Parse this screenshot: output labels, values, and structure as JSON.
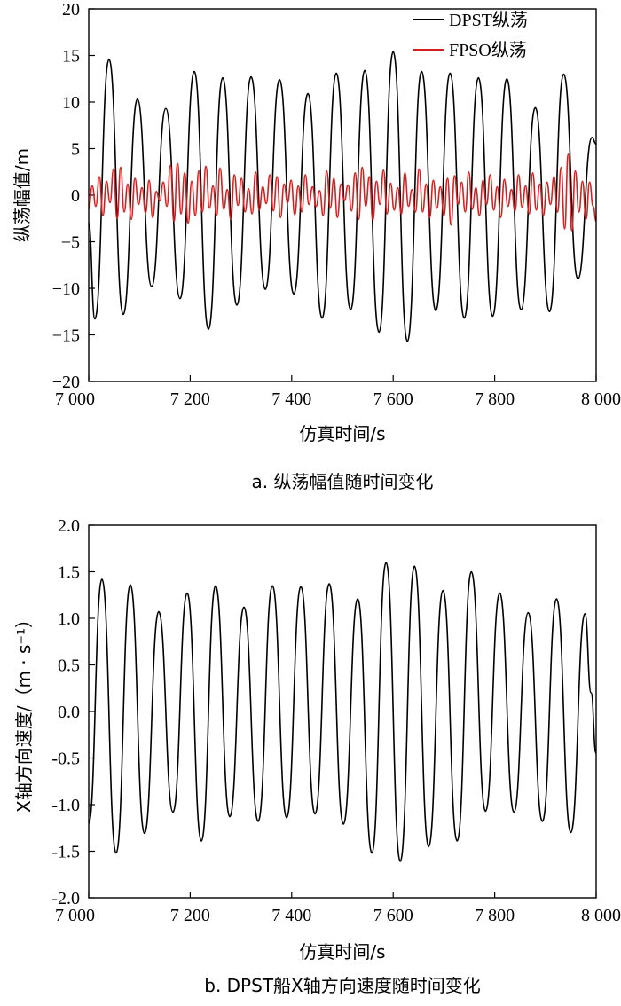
{
  "chart_data": [
    {
      "type": "line",
      "caption": "a. 纵荡幅值随时间变化",
      "xlabel": "仿真时间/s",
      "ylabel": "纵荡幅值/m",
      "xlim": [
        7000,
        8000
      ],
      "ylim": [
        -20,
        20
      ],
      "xticks": [
        7000,
        7200,
        7400,
        7600,
        7800,
        8000
      ],
      "xtick_labels": [
        "7 000",
        "7 200",
        "7 400",
        "7 600",
        "7 800",
        "8 000"
      ],
      "yticks": [
        -20,
        -15,
        -10,
        -5,
        0,
        5,
        10,
        15,
        20
      ],
      "ytick_labels": [
        "−20",
        "−15",
        "−10",
        "−5",
        "0",
        "5",
        "10",
        "15",
        "20"
      ],
      "legend_position": "top-right",
      "series": [
        {
          "name": "DPST纵荡",
          "color": "#000000",
          "x": [
            7000,
            7012,
            7040,
            7068,
            7096,
            7124,
            7152,
            7180,
            7208,
            7236,
            7264,
            7292,
            7320,
            7348,
            7376,
            7404,
            7432,
            7460,
            7488,
            7516,
            7544,
            7572,
            7600,
            7628,
            7656,
            7684,
            7712,
            7740,
            7768,
            7796,
            7824,
            7852,
            7880,
            7908,
            7936,
            7964,
            7992,
            8000
          ],
          "values": [
            -3,
            -13.3,
            14.6,
            -12.8,
            10.3,
            -9.8,
            9.3,
            -11.1,
            13.3,
            -14.4,
            12.6,
            -11.8,
            12.7,
            -10.1,
            12.4,
            -10.6,
            10.9,
            -13.2,
            13.1,
            -12.3,
            13.4,
            -14.7,
            15.4,
            -15.7,
            13.3,
            -12.4,
            13.1,
            -13.2,
            12.6,
            -13.0,
            12.5,
            -12.3,
            9.4,
            -12.5,
            13.0,
            -9.0,
            6.2,
            5.5
          ]
        },
        {
          "name": "FPSO纵荡",
          "color": "#d62020",
          "x": [
            7000,
            7007,
            7014,
            7021,
            7028,
            7035,
            7042,
            7049,
            7056,
            7063,
            7070,
            7077,
            7084,
            7091,
            7098,
            7105,
            7112,
            7119,
            7126,
            7133,
            7140,
            7147,
            7154,
            7161,
            7168,
            7175,
            7182,
            7189,
            7196,
            7203,
            7210,
            7217,
            7224,
            7231,
            7238,
            7245,
            7252,
            7259,
            7266,
            7273,
            7280,
            7287,
            7294,
            7301,
            7308,
            7315,
            7322,
            7329,
            7336,
            7343,
            7350,
            7357,
            7364,
            7371,
            7378,
            7385,
            7392,
            7399,
            7406,
            7413,
            7420,
            7427,
            7434,
            7441,
            7448,
            7455,
            7462,
            7469,
            7476,
            7483,
            7490,
            7497,
            7504,
            7511,
            7518,
            7525,
            7532,
            7539,
            7546,
            7553,
            7560,
            7567,
            7574,
            7581,
            7588,
            7595,
            7602,
            7609,
            7616,
            7623,
            7630,
            7637,
            7644,
            7651,
            7658,
            7665,
            7672,
            7679,
            7686,
            7693,
            7700,
            7707,
            7714,
            7721,
            7728,
            7735,
            7742,
            7749,
            7756,
            7763,
            7770,
            7777,
            7784,
            7791,
            7798,
            7805,
            7812,
            7819,
            7826,
            7833,
            7840,
            7847,
            7854,
            7861,
            7868,
            7875,
            7882,
            7889,
            7896,
            7903,
            7910,
            7917,
            7924,
            7931,
            7938,
            7945,
            7952,
            7959,
            7966,
            7973,
            7980,
            7987,
            7994,
            8000
          ],
          "values": [
            -1.5,
            1.0,
            -1.2,
            2.0,
            -2.2,
            1.5,
            -0.8,
            2.8,
            -2.5,
            3.0,
            -1.8,
            1.2,
            -2.6,
            1.8,
            -1.0,
            0.8,
            -1.9,
            1.6,
            -2.4,
            0.4,
            -0.6,
            1.4,
            -1.2,
            3.2,
            -2.8,
            3.4,
            -2.0,
            2.4,
            -3.0,
            1.5,
            -2.2,
            2.6,
            -1.8,
            3.1,
            -1.4,
            1.0,
            -2.2,
            2.9,
            -1.5,
            0.6,
            -2.6,
            2.2,
            -1.1,
            1.8,
            -1.8,
            0.7,
            -2.0,
            2.5,
            -1.6,
            0.9,
            -0.9,
            2.2,
            -1.7,
            2.0,
            -2.4,
            1.2,
            -0.8,
            1.6,
            -2.1,
            1.0,
            -1.8,
            2.2,
            -1.0,
            0.9,
            -1.2,
            0.5,
            -2.2,
            2.6,
            -1.4,
            1.8,
            -2.4,
            1.2,
            -0.6,
            1.1,
            -1.7,
            2.4,
            -2.6,
            3.0,
            -1.2,
            2.0,
            -2.7,
            1.5,
            -1.0,
            2.7,
            -2.0,
            1.3,
            -1.6,
            0.8,
            -2.0,
            2.4,
            -1.2,
            0.6,
            -1.8,
            2.8,
            -1.8,
            1.2,
            -2.4,
            1.6,
            -1.4,
            0.9,
            -2.2,
            1.8,
            -3.2,
            2.1,
            -1.0,
            1.4,
            -1.8,
            2.5,
            -1.5,
            0.8,
            -2.2,
            1.6,
            -1.0,
            2.2,
            -1.6,
            0.9,
            -2.4,
            1.7,
            -1.2,
            0.6,
            -1.7,
            2.2,
            -1.3,
            1.0,
            -2.0,
            2.4,
            -1.6,
            1.2,
            -2.2,
            1.4,
            -1.0,
            2.0,
            -1.8,
            3.0,
            -3.6,
            4.4,
            -3.8,
            2.6,
            -1.8,
            1.5,
            -2.6,
            1.4,
            -1.2,
            -2.8
          ]
        }
      ]
    },
    {
      "type": "line",
      "caption": "b. DPST船X轴方向速度随时间变化",
      "xlabel": "仿真时间/s",
      "ylabel": "X轴方向速度/（m · s⁻¹）",
      "xlim": [
        7000,
        8000
      ],
      "ylim": [
        -2.0,
        2.0
      ],
      "xticks": [
        7000,
        7200,
        7400,
        7600,
        7800,
        8000
      ],
      "xtick_labels": [
        "7 000",
        "7 200",
        "7 400",
        "7 600",
        "7 800",
        "8 000"
      ],
      "yticks": [
        -2.0,
        -1.5,
        -1.0,
        -0.5,
        0.0,
        0.5,
        1.0,
        1.5,
        2.0
      ],
      "ytick_labels": [
        "-2.0",
        "-1.5",
        "-1.0",
        "-0.5",
        "0.0",
        "0.5",
        "1.0",
        "1.5",
        "2.0"
      ],
      "series": [
        {
          "name": "",
          "color": "#000000",
          "x": [
            7000,
            7026,
            7054,
            7082,
            7110,
            7138,
            7166,
            7194,
            7222,
            7250,
            7278,
            7306,
            7334,
            7362,
            7390,
            7418,
            7446,
            7474,
            7502,
            7530,
            7558,
            7586,
            7614,
            7642,
            7670,
            7698,
            7726,
            7754,
            7782,
            7810,
            7838,
            7866,
            7894,
            7922,
            7950,
            7978,
            7990,
            8000
          ],
          "values": [
            -1.2,
            1.42,
            -1.52,
            1.36,
            -1.31,
            1.07,
            -1.08,
            1.27,
            -1.39,
            1.35,
            -1.13,
            1.12,
            -1.18,
            1.35,
            -1.14,
            1.34,
            -1.1,
            1.37,
            -1.21,
            1.21,
            -1.52,
            1.6,
            -1.61,
            1.56,
            -1.45,
            1.3,
            -1.39,
            1.5,
            -1.07,
            1.27,
            -1.08,
            1.06,
            -1.18,
            1.21,
            -1.3,
            1.05,
            0.2,
            -0.45
          ]
        }
      ]
    }
  ]
}
